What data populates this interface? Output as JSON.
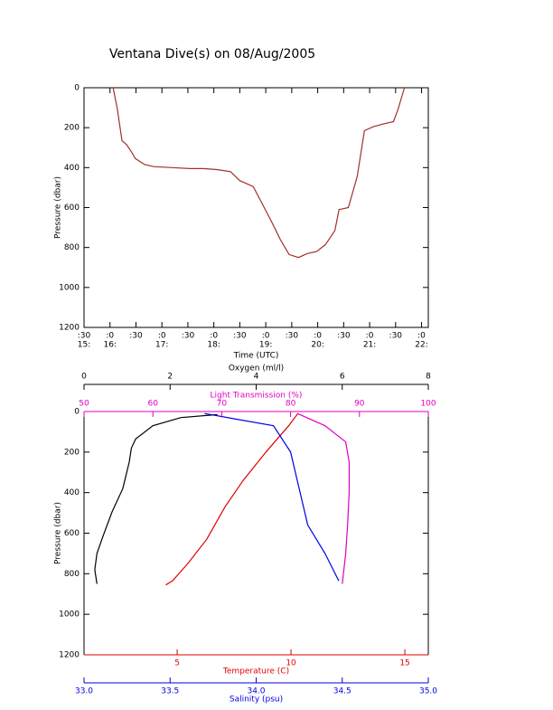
{
  "chart_data": [
    {
      "type": "line",
      "title": "Ventana Dive(s) on 08/Aug/2005",
      "xlabel": "Time (UTC)",
      "ylabel": "Pressure (dbar)",
      "x": [
        16.06,
        16.14,
        16.23,
        16.32,
        16.41,
        16.49,
        16.67,
        16.84,
        17.19,
        17.54,
        17.8,
        18.06,
        18.32,
        18.5,
        18.76,
        18.93,
        19.11,
        19.28,
        19.45,
        19.63,
        19.8,
        19.98,
        20.15,
        20.33,
        20.41,
        20.59,
        20.76,
        20.9,
        21.07,
        21.28,
        21.46,
        21.55,
        21.67
      ],
      "values": [
        0,
        105,
        265,
        285,
        320,
        355,
        385,
        395,
        400,
        405,
        405,
        410,
        420,
        465,
        495,
        580,
        670,
        760,
        835,
        850,
        830,
        820,
        785,
        715,
        610,
        600,
        445,
        215,
        195,
        180,
        170,
        105,
        0
      ],
      "color": "#a0302a",
      "xlim": [
        15.5,
        22.13
      ],
      "xticks": [
        {
          "value": 15.5,
          "label": ":30",
          "sublabel": "15:"
        },
        {
          "value": 16,
          "label": ":0",
          "sublabel": "16:"
        },
        {
          "value": 16.5,
          "label": ":30"
        },
        {
          "value": 17,
          "label": ":0",
          "sublabel": "17:"
        },
        {
          "value": 17.5,
          "label": ":30"
        },
        {
          "value": 18,
          "label": ":0",
          "sublabel": "18:"
        },
        {
          "value": 18.5,
          "label": ":30"
        },
        {
          "value": 19,
          "label": ":0",
          "sublabel": "19:"
        },
        {
          "value": 19.5,
          "label": ":30"
        },
        {
          "value": 20,
          "label": ":0",
          "sublabel": "20:"
        },
        {
          "value": 20.5,
          "label": ":30"
        },
        {
          "value": 21,
          "label": ":0",
          "sublabel": "21:"
        },
        {
          "value": 21.5,
          "label": ":30"
        },
        {
          "value": 22,
          "label": ":0",
          "sublabel": "22:"
        }
      ],
      "ylim": [
        0,
        1200
      ],
      "yticks": [
        0,
        200,
        400,
        600,
        800,
        1000,
        1200
      ],
      "yreversed": true
    },
    {
      "type": "profile",
      "ylabel": "Pressure (dbar)",
      "ylim": [
        0,
        1200
      ],
      "yticks": [
        0,
        200,
        400,
        600,
        800,
        1000,
        1200
      ],
      "yreversed": true,
      "x_axes": [
        {
          "label": "Oxygen (ml/l)",
          "color": "#000000",
          "side": "top",
          "lim": [
            0,
            8
          ],
          "ticks": [
            0,
            2,
            4,
            6,
            8
          ],
          "pressure": [
            15,
            30,
            70,
            135,
            180,
            250,
            380,
            495,
            610,
            700,
            780,
            850
          ],
          "values": [
            3.1,
            2.25,
            1.6,
            1.2,
            1.1,
            1.05,
            0.9,
            0.65,
            0.45,
            0.3,
            0.25,
            0.3
          ]
        },
        {
          "label": "Light Transmission (%)",
          "color": "#e000c0",
          "side": "top",
          "lim": [
            50,
            100
          ],
          "ticks": [
            50,
            60,
            70,
            80,
            90,
            100
          ],
          "pressure": [
            10,
            70,
            150,
            250,
            400,
            550,
            700,
            850
          ],
          "values": [
            81,
            85,
            88,
            88.5,
            88.5,
            88.3,
            88,
            87.5
          ]
        },
        {
          "label": "Temperature (C)",
          "color": "#e00000",
          "side": "bottom",
          "lim": [
            0.91,
            16.03
          ],
          "ticks": [
            5,
            10,
            15
          ],
          "pressure": [
            10,
            70,
            200,
            340,
            470,
            630,
            745,
            835,
            855
          ],
          "values": [
            10.3,
            9.9,
            8.9,
            7.9,
            7.1,
            6.3,
            5.5,
            4.8,
            4.5
          ]
        },
        {
          "label": "Salinity (psu)",
          "color": "#0000e0",
          "side": "bottom",
          "lim": [
            33,
            35
          ],
          "ticks": [
            {
              "value": 33,
              "label": "33.0"
            },
            33.5,
            {
              "value": 34,
              "label": "34.0"
            },
            34.5,
            {
              "value": 35,
              "label": "35.0"
            }
          ],
          "pressure": [
            10,
            70,
            200,
            380,
            560,
            700,
            835
          ],
          "values": [
            33.7,
            34.1,
            34.2,
            34.25,
            34.3,
            34.4,
            34.48
          ]
        }
      ]
    }
  ]
}
